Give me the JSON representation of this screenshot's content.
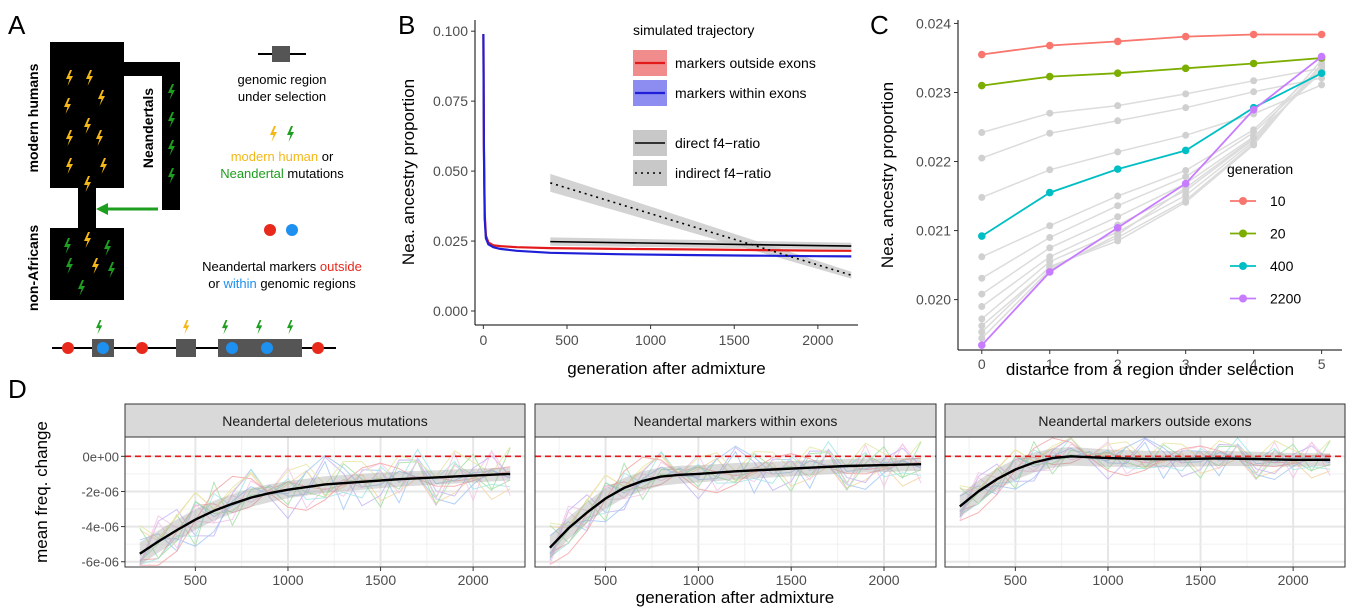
{
  "panel_letters": [
    "A",
    "B",
    "C",
    "D"
  ],
  "colors": {
    "human": "#f5b716",
    "neandertal": "#1e9e1e",
    "red_marker": "#e8291c",
    "blue_marker": "#1e90ef",
    "outside_line": "#e31a1c",
    "outside_band": "#f08080",
    "within_line": "#1f1fd8",
    "within_band": "#8080f0",
    "gen10": "#f8766d",
    "gen20": "#7cae00",
    "gen400": "#00bfc4",
    "gen2200": "#c77cff",
    "strip_bg": "#d9d9d9",
    "hline": "#e31a1c"
  },
  "panel_a": {
    "label_modern": "modern humans",
    "label_nonafr": "non-Africans",
    "label_neand": "Neandertals",
    "legend_region": [
      "genomic region",
      "under selection"
    ],
    "legend_mut_1": "modern human",
    "legend_mut_or": " or",
    "legend_mut_2": "Neandertal",
    "legend_mut_3": " mutations",
    "legend_mark_1": "Neandertal markers ",
    "legend_mark_2": "outside",
    "legend_mark_3": "or ",
    "legend_mark_4": "within",
    "legend_mark_5": " genomic regions",
    "icons": [
      "lightning-bolt-icon",
      "marker-dot-icon",
      "region-box-icon"
    ]
  },
  "chart_data": [
    {
      "id": "B",
      "type": "line",
      "xlabel": "generation after admixture",
      "ylabel": "Nea. ancestry proportion",
      "xlim": [
        -50,
        2240
      ],
      "ylim": [
        -0.005,
        0.104
      ],
      "xticks": [
        0,
        500,
        1000,
        1500,
        2000
      ],
      "yticks": [
        0.0,
        0.025,
        0.05,
        0.075,
        0.1
      ],
      "ytick_labels": [
        "0.000",
        "0.025",
        "0.050",
        "0.075",
        "0.100"
      ],
      "legend_title": "simulated trajectory",
      "series": [
        {
          "name": "markers outside exons",
          "x": [
            0,
            3,
            8,
            15,
            30,
            60,
            100,
            200,
            400,
            800,
            1200,
            1600,
            2000,
            2200
          ],
          "y": [
            0.099,
            0.06,
            0.035,
            0.027,
            0.0245,
            0.0235,
            0.0232,
            0.0228,
            0.0225,
            0.0222,
            0.022,
            0.0218,
            0.0216,
            0.0215
          ]
        },
        {
          "name": "markers within exons",
          "x": [
            0,
            3,
            8,
            15,
            30,
            60,
            100,
            200,
            400,
            800,
            1200,
            1600,
            2000,
            2200
          ],
          "y": [
            0.099,
            0.058,
            0.033,
            0.026,
            0.0238,
            0.0228,
            0.0222,
            0.0215,
            0.0208,
            0.0203,
            0.02,
            0.0198,
            0.0196,
            0.0195
          ]
        }
      ],
      "fits": [
        {
          "name": "direct f4−ratio",
          "x": [
            400,
            2200
          ],
          "y": [
            0.0248,
            0.0232
          ],
          "band": [
            0.0015,
            0.0012
          ]
        },
        {
          "name": "indirect f4−ratio",
          "x": [
            400,
            2200
          ],
          "y": [
            0.0458,
            0.0128
          ],
          "band": [
            0.0032,
            0.0012
          ]
        }
      ]
    },
    {
      "id": "C",
      "type": "line",
      "xlabel": "distance from a region under selection",
      "ylabel": "Nea. ancestry proportion",
      "xlim": [
        -0.35,
        5.3
      ],
      "ylim": [
        0.01927,
        0.02405
      ],
      "xticks": [
        0,
        1,
        2,
        3,
        4,
        5
      ],
      "yticks": [
        0.02,
        0.021,
        0.022,
        0.023,
        0.024
      ],
      "ytick_labels": [
        "0.020",
        "0.021",
        "0.022",
        "0.023",
        "0.024"
      ],
      "legend_title": "generation",
      "x": [
        0,
        1,
        2,
        3,
        4,
        5
      ],
      "series": [
        {
          "name": "10",
          "color": "#f8766d",
          "values": [
            0.02355,
            0.02368,
            0.02374,
            0.02381,
            0.02384,
            0.02384
          ]
        },
        {
          "name": "20",
          "color": "#7cae00",
          "values": [
            0.0231,
            0.02323,
            0.02328,
            0.02335,
            0.02342,
            0.0235
          ]
        },
        {
          "name": "400",
          "color": "#00bfc4",
          "values": [
            0.02092,
            0.02155,
            0.02189,
            0.02216,
            0.02278,
            0.02328
          ]
        },
        {
          "name": "2200",
          "color": "#c77cff",
          "values": [
            0.01934,
            0.0204,
            0.02104,
            0.02168,
            0.02275,
            0.02352
          ]
        }
      ],
      "grey_series": [
        [
          0.02242,
          0.0227,
          0.02281,
          0.02298,
          0.02317,
          0.02335
        ],
        [
          0.02205,
          0.02241,
          0.02259,
          0.02278,
          0.02301,
          0.02321
        ],
        [
          0.02148,
          0.02188,
          0.02214,
          0.02238,
          0.02269,
          0.02311
        ],
        [
          0.02062,
          0.02107,
          0.0215,
          0.02187,
          0.02246,
          0.02338
        ],
        [
          0.02031,
          0.0209,
          0.02136,
          0.02178,
          0.02242,
          0.02333
        ],
        [
          0.02008,
          0.02075,
          0.0212,
          0.02168,
          0.02236,
          0.0233
        ],
        [
          0.0199,
          0.02062,
          0.02108,
          0.02158,
          0.02232,
          0.02334
        ],
        [
          0.01972,
          0.02055,
          0.02098,
          0.02151,
          0.02229,
          0.02338
        ],
        [
          0.01962,
          0.02046,
          0.0209,
          0.02144,
          0.02226,
          0.0234
        ],
        [
          0.01953,
          0.02048,
          0.02085,
          0.02141,
          0.02224,
          0.02342
        ],
        [
          0.01944,
          0.02043,
          0.02094,
          0.02162,
          0.02234,
          0.02347
        ]
      ]
    },
    {
      "id": "D",
      "type": "line",
      "xlabel": "generation after admixture",
      "ylabel": "mean freq. change",
      "xlim": [
        120,
        2280
      ],
      "ylim": [
        -6.3e-06,
        1.1e-06
      ],
      "xticks": [
        500,
        1000,
        1500,
        2000
      ],
      "yticks": [
        0,
        -2e-06,
        -4e-06,
        -6e-06
      ],
      "ytick_labels": [
        "0e+00",
        "-2e-06",
        "-4e-06",
        "-6e-06"
      ],
      "facets": [
        {
          "title": "Neandertal deleterious mutations",
          "x": [
            200,
            300,
            400,
            500,
            600,
            700,
            800,
            900,
            1000,
            1200,
            1400,
            1600,
            1800,
            2000,
            2200
          ],
          "y": [
            -5.55e-06,
            -4.85e-06,
            -4.2e-06,
            -3.6e-06,
            -3.1e-06,
            -2.7e-06,
            -2.35e-06,
            -2.1e-06,
            -1.9e-06,
            -1.6e-06,
            -1.45e-06,
            -1.3e-06,
            -1.2e-06,
            -1.1e-06,
            -1e-06
          ]
        },
        {
          "title": "Neandertal markers within exons",
          "x": [
            200,
            300,
            400,
            500,
            600,
            700,
            800,
            900,
            1000,
            1200,
            1400,
            1600,
            1800,
            2000,
            2200
          ],
          "y": [
            -5.2e-06,
            -4.1e-06,
            -3.2e-06,
            -2.4e-06,
            -1.8e-06,
            -1.4e-06,
            -1.15e-06,
            -1.05e-06,
            -1e-06,
            -8.5e-07,
            -7.5e-07,
            -6.5e-07,
            -5.5e-07,
            -5e-07,
            -4.5e-07
          ]
        },
        {
          "title": "Neandertal markers outside exons",
          "x": [
            200,
            300,
            400,
            500,
            600,
            700,
            800,
            900,
            1000,
            1200,
            1400,
            1600,
            1800,
            2000,
            2200
          ],
          "y": [
            -2.85e-06,
            -2e-06,
            -1.3e-06,
            -7.5e-07,
            -3.5e-07,
            -1e-07,
            0.0,
            -5e-08,
            -1e-07,
            -1.5e-07,
            -1.5e-07,
            -1.2e-07,
            -1.5e-07,
            -2e-07,
            -2e-07
          ]
        }
      ]
    }
  ]
}
